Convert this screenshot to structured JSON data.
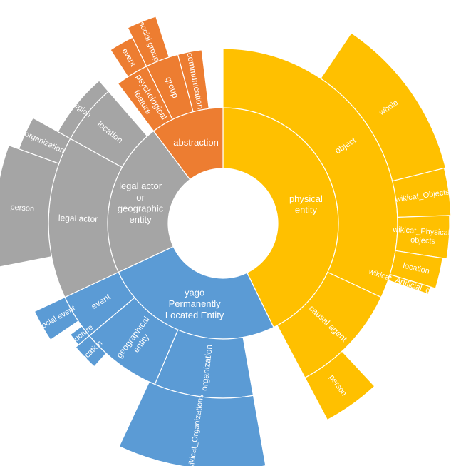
{
  "chart_data": {
    "type": "sunburst",
    "colors": {
      "physical": "#FFC000",
      "yago": "#5B9BD5",
      "legal": "#A5A5A5",
      "abstraction": "#ED7D31"
    },
    "rings": [
      {
        "ring": 1,
        "segments": [
          {
            "id": "physical_entity",
            "label": "physical\nentity",
            "start": 0,
            "end": 154,
            "color": "physical"
          },
          {
            "id": "yago_permanently_located_entity",
            "label": "yago\nPermanently\nLocated Entity",
            "start": 154,
            "end": 245,
            "color": "yago"
          },
          {
            "id": "legal_actor_or_geographic_entity",
            "label": "legal actor\nor\ngeographic\nentity",
            "start": 245,
            "end": 323,
            "color": "legal"
          },
          {
            "id": "abstraction",
            "label": "abstraction",
            "start": 323,
            "end": 360,
            "color": "abstraction"
          }
        ]
      },
      {
        "ring": 2,
        "segments": [
          {
            "id": "object",
            "label": "object",
            "start": 0,
            "end": 115,
            "color": "physical"
          },
          {
            "id": "causal_agent",
            "label": "causal agent",
            "start": 115,
            "end": 152,
            "color": "physical"
          },
          {
            "id": "organization_yago",
            "label": "organization",
            "start": 170,
            "end": 203,
            "color": "yago"
          },
          {
            "id": "geographical_entity",
            "label": "geographical\nentity",
            "start": 203,
            "end": 230,
            "color": "yago"
          },
          {
            "id": "event_yago",
            "label": "event",
            "start": 230,
            "end": 245,
            "color": "yago"
          },
          {
            "id": "legal_actor",
            "label": "legal actor",
            "start": 245,
            "end": 299,
            "color": "legal"
          },
          {
            "id": "location_legal",
            "label": "location",
            "start": 299,
            "end": 319,
            "color": "legal"
          },
          {
            "id": "group",
            "label": "group",
            "start": 334,
            "end": 345,
            "color": "abstraction"
          },
          {
            "id": "psychological_feature",
            "label": "psychological\nfeature",
            "start": 323,
            "end": 334,
            "color": "abstraction"
          },
          {
            "id": "communication",
            "label": "communication",
            "start": 345,
            "end": 353,
            "color": "abstraction"
          }
        ]
      },
      {
        "ring": 3,
        "segments": [
          {
            "id": "whole",
            "label": "whole",
            "start": 34,
            "end": 76,
            "color": "physical"
          },
          {
            "id": "wikicat_objects",
            "label": "wikicat_Objects",
            "start": 76,
            "end": 88,
            "color": "physical"
          },
          {
            "id": "wikicat_physical_objects",
            "label": "wikicat_Physical_\nobjects",
            "start": 88,
            "end": 99,
            "color": "physical"
          },
          {
            "id": "location_physical",
            "label": "location",
            "start": 99,
            "end": 107,
            "color": "physical"
          },
          {
            "id": "wikicat_artificial_objects",
            "label": "wikicat_Artificial_objects",
            "start": 107,
            "end": 109,
            "color": "physical"
          },
          {
            "id": "person_physical",
            "label": "person",
            "start": 137,
            "end": 152,
            "color": "physical"
          },
          {
            "id": "wikicat_organizations",
            "label": "wikicat_Organizations",
            "start": 170,
            "end": 205,
            "color": "yago"
          },
          {
            "id": "location_yago",
            "label": "location",
            "start": 222,
            "end": 230,
            "color": "yago"
          },
          {
            "id": "structure",
            "label": "structure",
            "start": 230,
            "end": 234,
            "color": "yago"
          },
          {
            "id": "social_event",
            "label": "social event",
            "start": 236,
            "end": 245,
            "color": "yago"
          },
          {
            "id": "person_legal",
            "label": "person",
            "start": 259,
            "end": 290,
            "color": "legal"
          },
          {
            "id": "organization_legal",
            "label": "organization",
            "start": 290,
            "end": 299,
            "color": "legal"
          },
          {
            "id": "region",
            "label": "region",
            "start": 299,
            "end": 319,
            "color": "legal"
          },
          {
            "id": "event_abstraction",
            "label": "event",
            "start": 327,
            "end": 334,
            "color": "abstraction"
          },
          {
            "id": "social_group",
            "label": "social group",
            "start": 334,
            "end": 342,
            "color": "abstraction"
          }
        ]
      }
    ]
  }
}
